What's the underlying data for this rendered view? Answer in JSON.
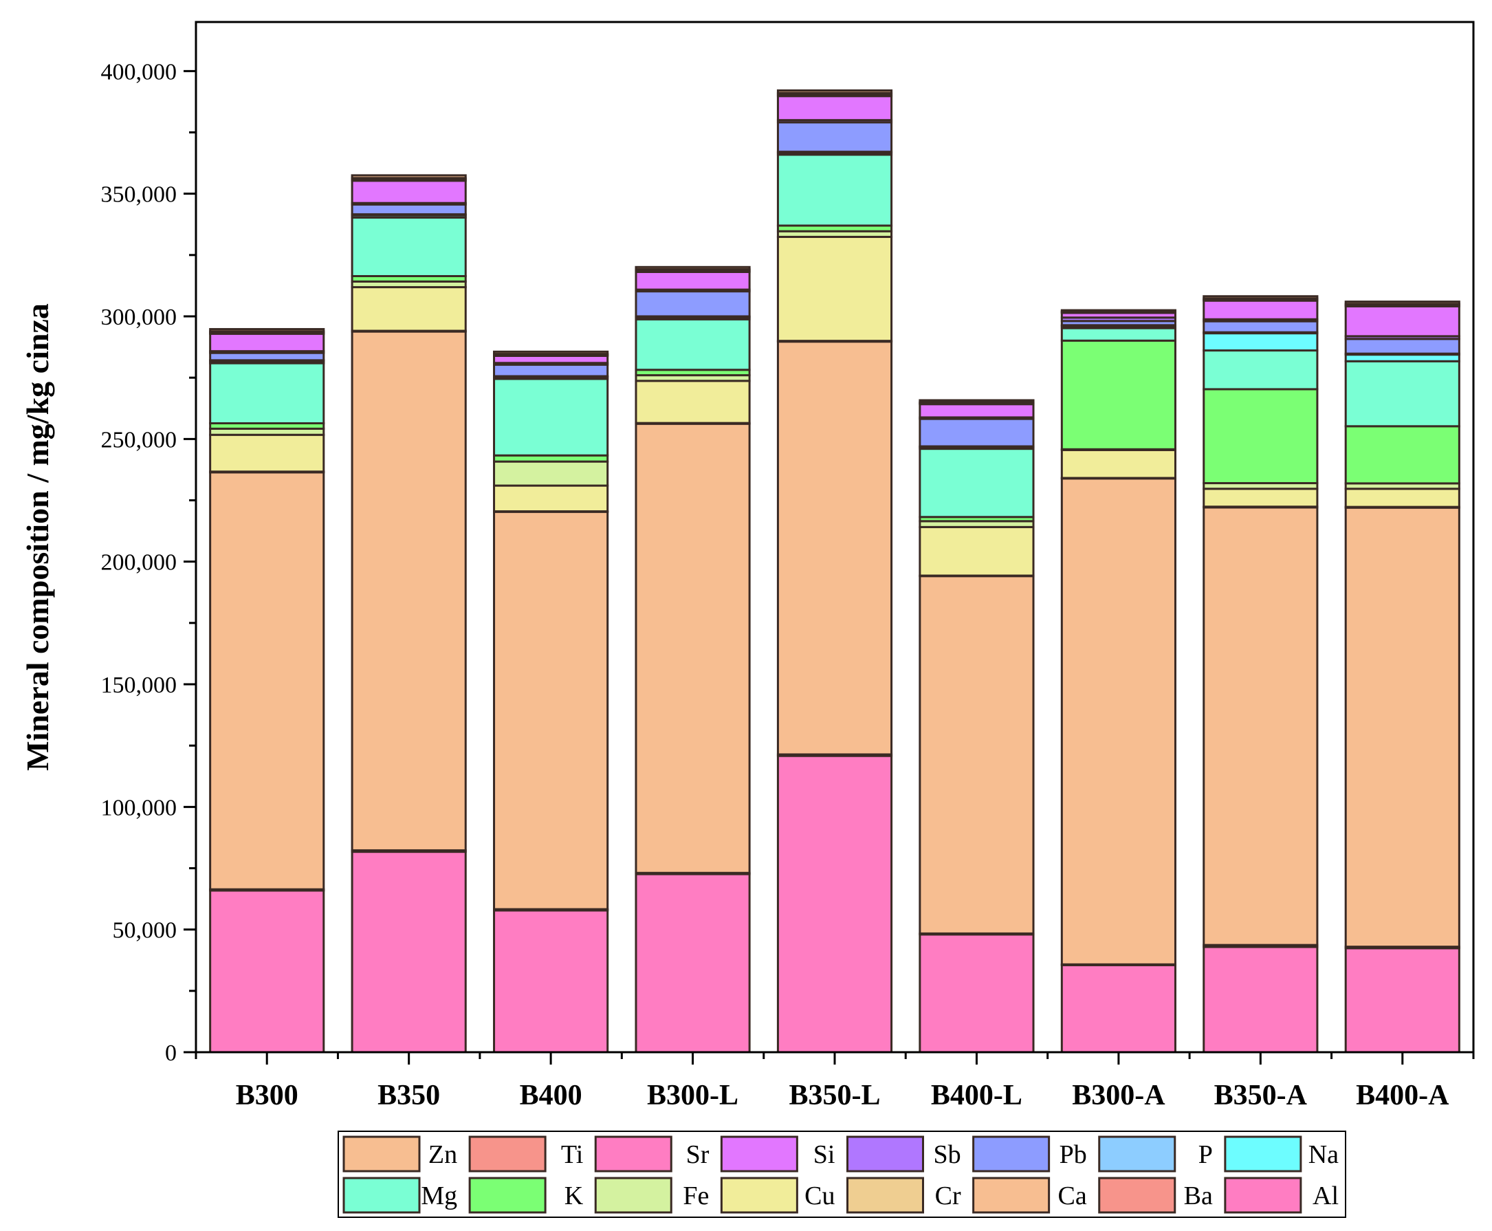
{
  "chart_data": {
    "type": "bar",
    "stacked": true,
    "title": "",
    "xlabel": "",
    "ylabel": "Mineral composition / mg/kg cinza",
    "ylim": [
      0,
      420000
    ],
    "yticks": [
      0,
      50000,
      100000,
      150000,
      200000,
      250000,
      300000,
      350000,
      400000
    ],
    "ytick_labels": [
      "0",
      "50,000",
      "100,000",
      "150,000",
      "200,000",
      "250,000",
      "300,000",
      "350,000",
      "400,000"
    ],
    "categories": [
      "B300",
      "B350",
      "B400",
      "B300-L",
      "B350-L",
      "B400-L",
      "B300-A",
      "B350-A",
      "B400-A"
    ],
    "series": [
      {
        "name": "Al",
        "color": "#ff7dc2",
        "values": [
          65900,
          81700,
          57800,
          72600,
          120800,
          48000,
          35500,
          42900,
          42400
        ]
      },
      {
        "name": "Ba",
        "color": "#f7948b",
        "values": [
          500,
          600,
          500,
          500,
          600,
          400,
          300,
          800,
          600
        ]
      },
      {
        "name": "Ca",
        "color": "#f7be91",
        "values": [
          170000,
          211500,
          162000,
          183100,
          168300,
          145700,
          198100,
          178400,
          179000
        ]
      },
      {
        "name": "Cr",
        "color": "#efce91",
        "values": [
          300,
          300,
          200,
          300,
          300,
          200,
          200,
          300,
          300
        ]
      },
      {
        "name": "Cu",
        "color": "#f1ed9a",
        "values": [
          15000,
          17800,
          10500,
          17200,
          42400,
          19800,
          11400,
          7300,
          7400
        ]
      },
      {
        "name": "Fe",
        "color": "#d4f2a0",
        "values": [
          2500,
          2300,
          9800,
          2300,
          2300,
          2400,
          300,
          2300,
          2200
        ]
      },
      {
        "name": "K",
        "color": "#7bff74",
        "values": [
          2200,
          2200,
          2500,
          2200,
          2300,
          1700,
          44300,
          38300,
          23300
        ]
      },
      {
        "name": "Mg",
        "color": "#7affd4",
        "values": [
          24500,
          23900,
          31200,
          20600,
          28900,
          27800,
          5100,
          15800,
          26500
        ]
      },
      {
        "name": "Na",
        "color": "#6dfdff",
        "values": [
          800,
          900,
          800,
          800,
          800,
          700,
          800,
          7000,
          2700
        ]
      },
      {
        "name": "P",
        "color": "#8dcdff",
        "values": [
          400,
          400,
          300,
          400,
          400,
          300,
          400,
          400,
          400
        ]
      },
      {
        "name": "Pb",
        "color": "#8d9cff",
        "values": [
          3000,
          4000,
          4700,
          10200,
          12000,
          11200,
          1700,
          4500,
          6000
        ]
      },
      {
        "name": "Sb",
        "color": "#b077ff",
        "values": [
          700,
          600,
          700,
          700,
          900,
          600,
          1400,
          800,
          1100
        ]
      },
      {
        "name": "Si",
        "color": "#e277ff",
        "values": [
          7100,
          9100,
          2900,
          7200,
          9800,
          5400,
          1900,
          7600,
          12200
        ]
      },
      {
        "name": "Sr",
        "color": "#ff7dc2",
        "values": [
          500,
          600,
          400,
          600,
          700,
          400,
          300,
          400,
          500
        ]
      },
      {
        "name": "Ti",
        "color": "#f7948b",
        "values": [
          500,
          500,
          400,
          500,
          600,
          400,
          300,
          500,
          500
        ]
      },
      {
        "name": "Zn",
        "color": "#f7be91",
        "values": [
          900,
          1100,
          900,
          900,
          1000,
          800,
          500,
          900,
          900
        ]
      }
    ],
    "legend": {
      "placement": "bottom",
      "rows": [
        [
          "Zn",
          "Ti",
          "Sr",
          "Si",
          "Sb",
          "Pb",
          "P",
          "Na"
        ],
        [
          "Mg",
          "K",
          "Fe",
          "Cu",
          "Cr",
          "Ca",
          "Ba",
          "Al"
        ]
      ]
    },
    "grid": false
  }
}
